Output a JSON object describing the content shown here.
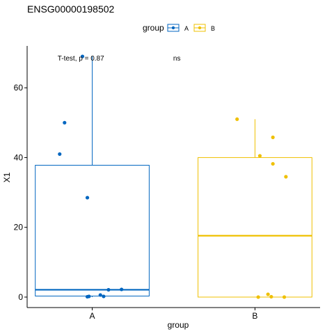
{
  "chart_data": {
    "type": "boxplot",
    "title": "ENSG00000198502",
    "xlabel": "group",
    "ylabel": "X1",
    "ylim": [
      -3,
      72
    ],
    "yticks": [
      0,
      20,
      40,
      60
    ],
    "categories": [
      "A",
      "B"
    ],
    "legend": {
      "title": "group",
      "position": "top",
      "entries": [
        "A",
        "B"
      ]
    },
    "series": [
      {
        "name": "A",
        "color": "#0066C0",
        "box": {
          "min": 0,
          "q1": 0.3,
          "median": 2.1,
          "q3": 37.8,
          "max": 69
        },
        "points": [
          {
            "x": -0.06,
            "y": 69.0
          },
          {
            "x": -0.17,
            "y": 50.0
          },
          {
            "x": -0.2,
            "y": 41.0
          },
          {
            "x": -0.03,
            "y": 28.5
          },
          {
            "x": 0.1,
            "y": 2.1
          },
          {
            "x": 0.18,
            "y": 2.2
          },
          {
            "x": -0.03,
            "y": 0.1
          },
          {
            "x": -0.02,
            "y": 0.2
          },
          {
            "x": 0.05,
            "y": 0.6
          },
          {
            "x": 0.07,
            "y": 0.2
          }
        ]
      },
      {
        "name": "B",
        "color": "#EFC000",
        "box": {
          "min": 0,
          "q1": 0,
          "median": 17.6,
          "q3": 40.0,
          "max": 51
        },
        "points": [
          {
            "x": -0.11,
            "y": 51.0
          },
          {
            "x": 0.11,
            "y": 45.8
          },
          {
            "x": 0.03,
            "y": 40.5
          },
          {
            "x": 0.11,
            "y": 38.2
          },
          {
            "x": 0.19,
            "y": 34.5
          },
          {
            "x": 0.08,
            "y": 0.8
          },
          {
            "x": 0.1,
            "y": 0.1
          },
          {
            "x": 0.02,
            "y": 0.0
          },
          {
            "x": 0.18,
            "y": 0.0
          }
        ]
      }
    ],
    "annotations": [
      {
        "text": "T-test, p = 0.87",
        "x": 0.93,
        "y": 68.5
      },
      {
        "text": "ns",
        "x": 1.52,
        "y": 68.5
      }
    ]
  }
}
